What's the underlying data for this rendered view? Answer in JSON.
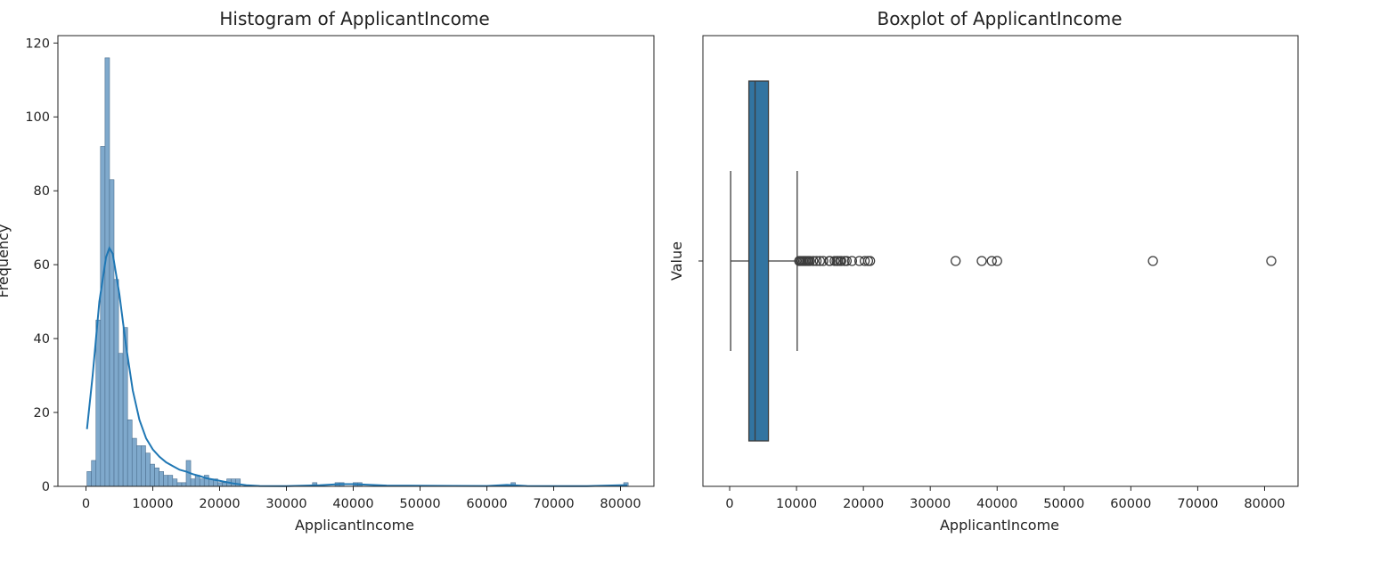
{
  "chart_data": [
    {
      "type": "bar",
      "subtype": "histogram_with_kde",
      "title": "Histogram of ApplicantIncome",
      "xlabel": "ApplicantIncome",
      "ylabel": "Frequency",
      "xlim": [
        -4200,
        85000
      ],
      "ylim": [
        0,
        122
      ],
      "x_ticks": [
        0,
        10000,
        20000,
        30000,
        40000,
        50000,
        60000,
        70000,
        80000
      ],
      "y_ticks": [
        0,
        20,
        40,
        60,
        80,
        100,
        120
      ],
      "bin_width": 675,
      "bin_start": 150,
      "counts": [
        4,
        7,
        45,
        92,
        116,
        83,
        56,
        36,
        43,
        18,
        13,
        11,
        11,
        9,
        6,
        5,
        4,
        3,
        3,
        2,
        1,
        1,
        7,
        2,
        3,
        2,
        3,
        2,
        2,
        1,
        1,
        2,
        2,
        2,
        0,
        0,
        0,
        0,
        0,
        0,
        0,
        0,
        0,
        0,
        0,
        0,
        0,
        0,
        0,
        0,
        1,
        0,
        0,
        0,
        0,
        1,
        1,
        0,
        0,
        1,
        1,
        0,
        0,
        0,
        0,
        0,
        0,
        0,
        0,
        0,
        0,
        0,
        0,
        0,
        0,
        0,
        0,
        0,
        0,
        0,
        0,
        0,
        0,
        0,
        0,
        0,
        0,
        0,
        0,
        0,
        0,
        0,
        0,
        0,
        1,
        0,
        0,
        0,
        0,
        0,
        0,
        0,
        0,
        0,
        0,
        0,
        0,
        0,
        0,
        0,
        0,
        0,
        0,
        0,
        0,
        0,
        0,
        0,
        0,
        1
      ],
      "kde": {
        "x": [
          150,
          1000,
          2000,
          3000,
          3500,
          4000,
          5000,
          6000,
          7000,
          8000,
          9000,
          10000,
          11000,
          12000,
          13000,
          14000,
          15000,
          16000,
          17000,
          18000,
          20000,
          22000,
          24000,
          26000,
          30000,
          35000,
          38000,
          40000,
          45000,
          60000,
          63000,
          66000,
          75000,
          80000,
          81000
        ],
        "y": [
          15.5,
          30,
          50,
          62,
          64.5,
          63,
          52,
          38,
          26,
          18,
          13,
          10,
          8,
          6.5,
          5.5,
          4.5,
          4,
          3.3,
          2.8,
          2.2,
          1.5,
          0.8,
          0.3,
          0.1,
          0.05,
          0.3,
          0.6,
          0.6,
          0.2,
          0.1,
          0.4,
          0.1,
          0.05,
          0.3,
          0.3
        ]
      },
      "colors": {
        "bar_fill": "#7fa9cc",
        "bar_edge": "#4c6f8f",
        "kde": "#1f77b4"
      },
      "grid": false
    },
    {
      "type": "boxplot",
      "orientation": "horizontal",
      "title": "Boxplot of ApplicantIncome",
      "xlabel": "ApplicantIncome",
      "ylabel": "Value",
      "xlim": [
        -4000,
        85000
      ],
      "x_ticks": [
        0,
        10000,
        20000,
        30000,
        40000,
        50000,
        60000,
        70000,
        80000
      ],
      "y_ticks": [
        ""
      ],
      "box": {
        "whisker_low": 150,
        "q1": 2875,
        "median": 3800,
        "q3": 5800,
        "whisker_high": 10100
      },
      "outliers": [
        10400,
        10600,
        10800,
        11000,
        11200,
        11400,
        11600,
        11800,
        12000,
        12500,
        13000,
        13500,
        14000,
        14900,
        15000,
        15700,
        16000,
        16200,
        16500,
        16700,
        17200,
        17500,
        18300,
        19400,
        20200,
        20700,
        21000,
        33800,
        37700,
        39200,
        40000,
        63300,
        81000
      ],
      "colors": {
        "box_fill": "#3274a1",
        "box_edge": "#3d3d3d",
        "outlier_edge": "#3d3d3d"
      },
      "grid": false
    }
  ]
}
